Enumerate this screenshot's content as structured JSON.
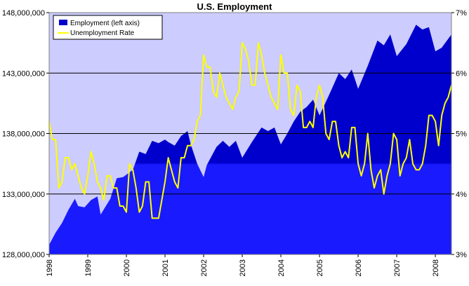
{
  "chart_data": {
    "type": "area",
    "title": "U.S. Employment",
    "colors": {
      "plot_background": "#ccccff",
      "employment_fill": "#0000cc",
      "employment_fill_light": "#1a1aff",
      "unemployment_line": "#ffff00",
      "gridline": "#000000"
    },
    "grid": true,
    "legend_position": "top-left",
    "x_tick_labels": [
      "1998",
      "1999",
      "2000",
      "2001",
      "2002",
      "2003",
      "2004",
      "2005",
      "2006",
      "2007",
      "2008"
    ],
    "left_axis": {
      "ylim": [
        128000000,
        148000000
      ],
      "tick_labels": [
        "128,000,000",
        "133,000,000",
        "138,000,000",
        "143,000,000",
        "148,000,000"
      ]
    },
    "right_axis": {
      "ylim": [
        3,
        7
      ],
      "tick_labels": [
        "3%",
        "4%",
        "5%",
        "6%",
        "7%"
      ]
    },
    "x_range": [
      "1998-01",
      "2008-06"
    ],
    "series": [
      {
        "name": "Employment (left axis)",
        "type": "area",
        "axis": "left",
        "points": [
          [
            "1998-01",
            128800000
          ],
          [
            "1998-03",
            129800000
          ],
          [
            "1998-05",
            130600000
          ],
          [
            "1998-07",
            131700000
          ],
          [
            "1998-09",
            132600000
          ],
          [
            "1998-10",
            132000000
          ],
          [
            "1998-12",
            131900000
          ],
          [
            "1999-02",
            132500000
          ],
          [
            "1999-04",
            132800000
          ],
          [
            "1999-05",
            131300000
          ],
          [
            "1999-08",
            132600000
          ],
          [
            "1999-10",
            134300000
          ],
          [
            "1999-12",
            134400000
          ],
          [
            "2000-03",
            135000000
          ],
          [
            "2000-05",
            136500000
          ],
          [
            "2000-07",
            136300000
          ],
          [
            "2000-09",
            137400000
          ],
          [
            "2000-11",
            137200000
          ],
          [
            "2001-01",
            137500000
          ],
          [
            "2001-02",
            137300000
          ],
          [
            "2001-04",
            137000000
          ],
          [
            "2001-06",
            137800000
          ],
          [
            "2001-08",
            138200000
          ],
          [
            "2001-09",
            137100000
          ],
          [
            "2001-11",
            135500000
          ],
          [
            "2002-01",
            134400000
          ],
          [
            "2002-02",
            135400000
          ],
          [
            "2002-05",
            136900000
          ],
          [
            "2002-07",
            137400000
          ],
          [
            "2002-09",
            136900000
          ],
          [
            "2002-11",
            137400000
          ],
          [
            "2003-01",
            136000000
          ],
          [
            "2003-04",
            137300000
          ],
          [
            "2003-07",
            138500000
          ],
          [
            "2003-09",
            138200000
          ],
          [
            "2003-11",
            138500000
          ],
          [
            "2004-01",
            137100000
          ],
          [
            "2004-03",
            138000000
          ],
          [
            "2004-05",
            139000000
          ],
          [
            "2004-07",
            139800000
          ],
          [
            "2004-09",
            140200000
          ],
          [
            "2004-11",
            140800000
          ],
          [
            "2005-01",
            139500000
          ],
          [
            "2005-04",
            141200000
          ],
          [
            "2005-07",
            143000000
          ],
          [
            "2005-09",
            142500000
          ],
          [
            "2005-11",
            143300000
          ],
          [
            "2006-01",
            141700000
          ],
          [
            "2006-04",
            143600000
          ],
          [
            "2006-07",
            145700000
          ],
          [
            "2006-09",
            145300000
          ],
          [
            "2006-11",
            146200000
          ],
          [
            "2007-01",
            144400000
          ],
          [
            "2007-04",
            145400000
          ],
          [
            "2007-07",
            147000000
          ],
          [
            "2007-09",
            146600000
          ],
          [
            "2007-11",
            146800000
          ],
          [
            "2008-01",
            144800000
          ],
          [
            "2008-03",
            145100000
          ],
          [
            "2008-06",
            146200000
          ]
        ]
      },
      {
        "name": "Unemployment Rate",
        "type": "line",
        "axis": "right",
        "points": [
          [
            "1998-01",
            5.2
          ],
          [
            "1998-02",
            4.9
          ],
          [
            "1998-03",
            4.9
          ],
          [
            "1998-04",
            4.1
          ],
          [
            "1998-05",
            4.2
          ],
          [
            "1998-06",
            4.6
          ],
          [
            "1998-07",
            4.6
          ],
          [
            "1998-08",
            4.4
          ],
          [
            "1998-09",
            4.5
          ],
          [
            "1998-10",
            4.3
          ],
          [
            "1998-11",
            4.1
          ],
          [
            "1998-12",
            4.0
          ],
          [
            "1999-01",
            4.3
          ],
          [
            "1999-02",
            4.7
          ],
          [
            "1999-03",
            4.5
          ],
          [
            "1999-04",
            4.2
          ],
          [
            "1999-05",
            4.1
          ],
          [
            "1999-06",
            3.9
          ],
          [
            "1999-07",
            4.3
          ],
          [
            "1999-08",
            4.3
          ],
          [
            "1999-09",
            4.1
          ],
          [
            "1999-10",
            4.1
          ],
          [
            "1999-11",
            3.8
          ],
          [
            "1999-12",
            3.8
          ],
          [
            "2000-01",
            3.7
          ],
          [
            "2000-02",
            4.5
          ],
          [
            "2000-03",
            4.4
          ],
          [
            "2000-04",
            4.1
          ],
          [
            "2000-05",
            3.7
          ],
          [
            "2000-06",
            3.8
          ],
          [
            "2000-07",
            4.2
          ],
          [
            "2000-08",
            4.2
          ],
          [
            "2000-09",
            3.6
          ],
          [
            "2000-10",
            3.6
          ],
          [
            "2000-11",
            3.6
          ],
          [
            "2001-01",
            4.2
          ],
          [
            "2001-02",
            4.6
          ],
          [
            "2001-03",
            4.4
          ],
          [
            "2001-04",
            4.2
          ],
          [
            "2001-05",
            4.1
          ],
          [
            "2001-06",
            4.6
          ],
          [
            "2001-07",
            4.6
          ],
          [
            "2001-08",
            4.8
          ],
          [
            "2001-09",
            4.8
          ],
          [
            "2001-10",
            4.9
          ],
          [
            "2001-11",
            5.2
          ],
          [
            "2001-12",
            5.3
          ],
          [
            "2002-01",
            6.3
          ],
          [
            "2002-02",
            6.1
          ],
          [
            "2002-03",
            6.1
          ],
          [
            "2002-04",
            5.7
          ],
          [
            "2002-05",
            5.6
          ],
          [
            "2002-06",
            6.0
          ],
          [
            "2002-07",
            5.8
          ],
          [
            "2002-08",
            5.6
          ],
          [
            "2002-09",
            5.5
          ],
          [
            "2002-10",
            5.4
          ],
          [
            "2002-11",
            5.6
          ],
          [
            "2002-12",
            5.7
          ],
          [
            "2003-01",
            6.5
          ],
          [
            "2003-02",
            6.4
          ],
          [
            "2003-03",
            6.2
          ],
          [
            "2003-04",
            5.8
          ],
          [
            "2003-05",
            5.8
          ],
          [
            "2003-06",
            6.5
          ],
          [
            "2003-07",
            6.3
          ],
          [
            "2003-08",
            6.0
          ],
          [
            "2003-09",
            5.8
          ],
          [
            "2003-10",
            5.6
          ],
          [
            "2003-11",
            5.5
          ],
          [
            "2003-12",
            5.4
          ],
          [
            "2004-01",
            6.3
          ],
          [
            "2004-02",
            6.0
          ],
          [
            "2004-03",
            6.0
          ],
          [
            "2004-04",
            5.4
          ],
          [
            "2004-05",
            5.3
          ],
          [
            "2004-06",
            5.8
          ],
          [
            "2004-07",
            5.7
          ],
          [
            "2004-08",
            5.1
          ],
          [
            "2004-09",
            5.1
          ],
          [
            "2004-10",
            5.2
          ],
          [
            "2004-11",
            5.1
          ],
          [
            "2004-12",
            5.6
          ],
          [
            "2005-01",
            5.8
          ],
          [
            "2005-02",
            5.6
          ],
          [
            "2005-03",
            5.0
          ],
          [
            "2005-04",
            4.9
          ],
          [
            "2005-05",
            5.2
          ],
          [
            "2005-06",
            5.2
          ],
          [
            "2005-07",
            4.8
          ],
          [
            "2005-08",
            4.6
          ],
          [
            "2005-09",
            4.7
          ],
          [
            "2005-10",
            4.6
          ],
          [
            "2005-11",
            5.1
          ],
          [
            "2005-12",
            5.1
          ],
          [
            "2006-01",
            4.5
          ],
          [
            "2006-02",
            4.3
          ],
          [
            "2006-03",
            4.5
          ],
          [
            "2006-04",
            5.0
          ],
          [
            "2006-05",
            4.4
          ],
          [
            "2006-06",
            4.1
          ],
          [
            "2006-07",
            4.3
          ],
          [
            "2006-08",
            4.4
          ],
          [
            "2006-09",
            4.0
          ],
          [
            "2006-10",
            4.3
          ],
          [
            "2006-11",
            4.5
          ],
          [
            "2006-12",
            5.0
          ],
          [
            "2007-01",
            4.9
          ],
          [
            "2007-02",
            4.3
          ],
          [
            "2007-03",
            4.5
          ],
          [
            "2007-04",
            4.6
          ],
          [
            "2007-05",
            4.9
          ],
          [
            "2007-06",
            4.5
          ],
          [
            "2007-07",
            4.4
          ],
          [
            "2007-08",
            4.4
          ],
          [
            "2007-09",
            4.5
          ],
          [
            "2007-10",
            4.8
          ],
          [
            "2007-11",
            5.3
          ],
          [
            "2007-12",
            5.3
          ],
          [
            "2008-01",
            5.2
          ],
          [
            "2008-02",
            4.8
          ],
          [
            "2008-03",
            5.3
          ],
          [
            "2008-04",
            5.5
          ],
          [
            "2008-05",
            5.6
          ],
          [
            "2008-06",
            5.8
          ]
        ]
      }
    ]
  }
}
